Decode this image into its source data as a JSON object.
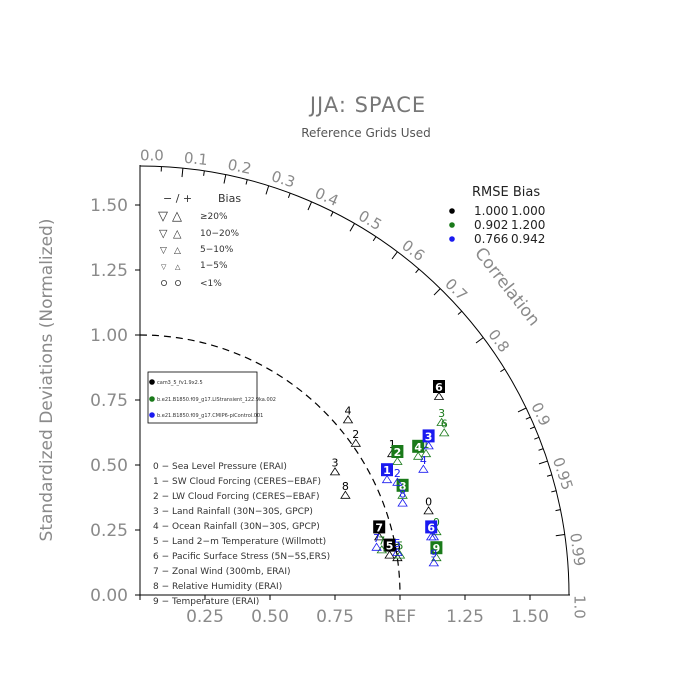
{
  "title": "JJA: SPACE",
  "subtitle": "Reference Grids Used",
  "y_axis_title": "Standardized Deviations (Normalized)",
  "correlation_title": "Correlation",
  "x_tick_labels": [
    "0.25",
    "0.50",
    "0.75",
    "REF",
    "1.25",
    "1.50"
  ],
  "y_tick_labels": [
    "0.00",
    "0.25",
    "0.50",
    "0.75",
    "1.00",
    "1.25",
    "1.50"
  ],
  "corr_tick_labels": [
    "0.0",
    "0.1",
    "0.2",
    "0.3",
    "0.4",
    "0.5",
    "0.6",
    "0.7",
    "0.8",
    "0.9",
    "0.95",
    "0.99",
    "1.0"
  ],
  "bias_legend": {
    "header_symbols": "−  /  +",
    "header_label": "Bias",
    "rows": [
      "≥20%",
      "10−20%",
      "5−10%",
      "1−5%",
      "<1%"
    ]
  },
  "rmse_legend": {
    "header": "RMSE  Bias",
    "rows": [
      {
        "color": "#000000",
        "rmse": "1.000",
        "bias": "1.000"
      },
      {
        "color": "#1a7a1a",
        "rmse": "0.902",
        "bias": "1.200"
      },
      {
        "color": "#1a1af0",
        "rmse": "0.766",
        "bias": "0.942"
      }
    ]
  },
  "case_legend": [
    {
      "color": "#000000",
      "label": "cam3_5_fv1.9x2.5"
    },
    {
      "color": "#1a7a1a",
      "label": "b.e21.B1850.f09_g17.LIStransient_122.9ka.002"
    },
    {
      "color": "#1a1af0",
      "label": "b.e21.B1850.f09_g17.CMIP6-piControl.001"
    }
  ],
  "variables": [
    "0 − Sea Level Pressure (ERAI)",
    "1 − SW Cloud Forcing (CERES−EBAF)",
    "2 − LW Cloud Forcing (CERES−EBAF)",
    "3 − Land Rainfall (30N−30S, GPCP)",
    "4 − Ocean Rainfall (30N−30S, GPCP)",
    "5 − Land 2−m Temperature (Willmott)",
    "6 − Pacific Surface Stress (5N−5S,ERS)",
    "7 − Zonal Wind (300mb, ERAI)",
    "8 − Relative Humidity (ERAI)",
    "9 − Temperature (ERAI)"
  ],
  "chart_data": {
    "type": "scatter",
    "title": "JJA: SPACE",
    "subtitle": "Reference Grids Used",
    "ylabel": "Standardized Deviations (Normalized)",
    "xlim": [
      0,
      1.65
    ],
    "ylim": [
      0,
      1.65
    ],
    "series": [
      {
        "name": "cam3_5_fv1.9x2.5",
        "color": "#000000",
        "points": [
          {
            "id": "0",
            "x": 1.11,
            "y": 0.36,
            "boxed": false
          },
          {
            "id": "1",
            "x": 0.97,
            "y": 0.58,
            "boxed": false
          },
          {
            "id": "2",
            "x": 0.83,
            "y": 0.62,
            "boxed": false
          },
          {
            "id": "3",
            "x": 0.75,
            "y": 0.51,
            "boxed": false
          },
          {
            "id": "4",
            "x": 0.8,
            "y": 0.71,
            "boxed": false
          },
          {
            "id": "5",
            "x": 0.96,
            "y": 0.19,
            "boxed": true
          },
          {
            "id": "6",
            "x": 1.15,
            "y": 0.8,
            "boxed": true
          },
          {
            "id": "7",
            "x": 0.92,
            "y": 0.26,
            "boxed": true
          },
          {
            "id": "8",
            "x": 0.79,
            "y": 0.42,
            "boxed": false
          },
          {
            "id": "9",
            "x": 0.99,
            "y": 0.18,
            "boxed": false
          }
        ]
      },
      {
        "name": "b.e21.B1850.f09_g17.LIStransient_122.9ka.002",
        "color": "#1a7a1a",
        "points": [
          {
            "id": "0",
            "x": 1.14,
            "y": 0.28,
            "boxed": false
          },
          {
            "id": "1",
            "x": 1.1,
            "y": 0.58,
            "boxed": false
          },
          {
            "id": "2",
            "x": 0.99,
            "y": 0.55,
            "boxed": true
          },
          {
            "id": "3",
            "x": 1.16,
            "y": 0.7,
            "boxed": false
          },
          {
            "id": "4",
            "x": 1.07,
            "y": 0.57,
            "boxed": true
          },
          {
            "id": "5",
            "x": 1.0,
            "y": 0.19,
            "boxed": false
          },
          {
            "id": "6",
            "x": 1.17,
            "y": 0.66,
            "boxed": false
          },
          {
            "id": "7",
            "x": 0.93,
            "y": 0.21,
            "boxed": false
          },
          {
            "id": "8",
            "x": 1.01,
            "y": 0.42,
            "boxed": true
          },
          {
            "id": "9",
            "x": 1.14,
            "y": 0.18,
            "boxed": true
          }
        ]
      },
      {
        "name": "b.e21.B1850.f09_g17.CMIP6-piControl.001",
        "color": "#1a1af0",
        "points": [
          {
            "id": "0",
            "x": 1.13,
            "y": 0.26,
            "boxed": false
          },
          {
            "id": "1",
            "x": 0.95,
            "y": 0.48,
            "boxed": true
          },
          {
            "id": "2",
            "x": 0.99,
            "y": 0.47,
            "boxed": false
          },
          {
            "id": "3",
            "x": 1.11,
            "y": 0.61,
            "boxed": true
          },
          {
            "id": "4",
            "x": 1.09,
            "y": 0.52,
            "boxed": false
          },
          {
            "id": "5",
            "x": 0.99,
            "y": 0.2,
            "boxed": false
          },
          {
            "id": "6",
            "x": 1.12,
            "y": 0.26,
            "boxed": true
          },
          {
            "id": "7",
            "x": 0.91,
            "y": 0.22,
            "boxed": false
          },
          {
            "id": "8",
            "x": 1.01,
            "y": 0.39,
            "boxed": false
          },
          {
            "id": "9",
            "x": 1.13,
            "y": 0.16,
            "boxed": false
          }
        ]
      }
    ]
  }
}
